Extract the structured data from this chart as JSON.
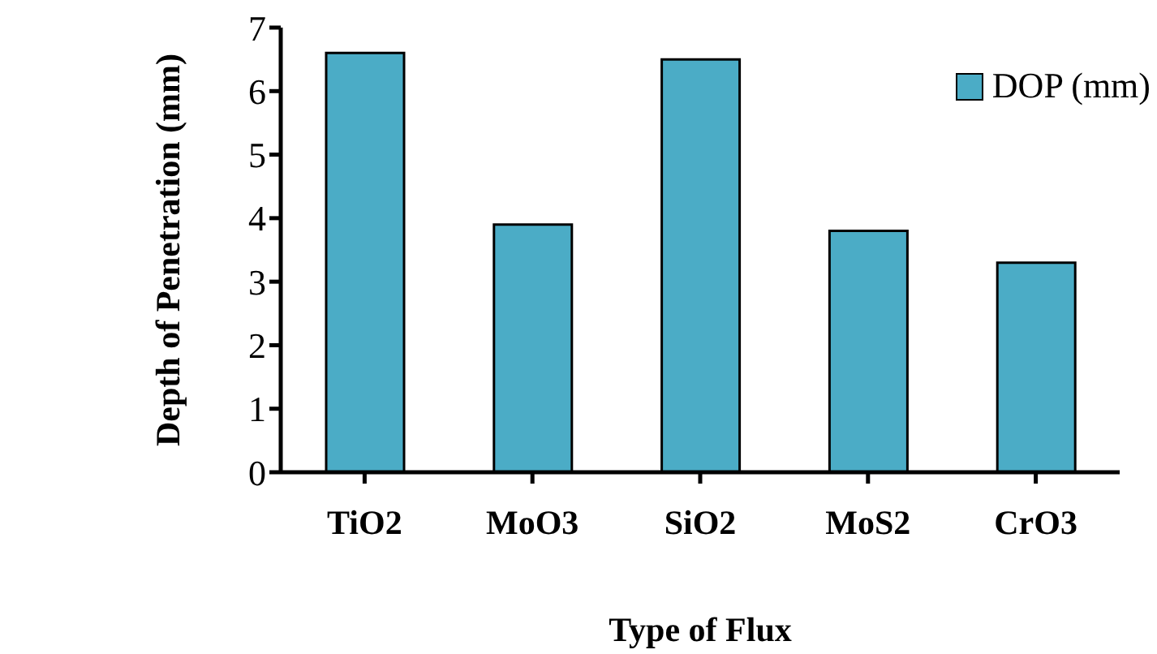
{
  "chart_data": {
    "type": "bar",
    "xlabel": "Type of Flux",
    "ylabel": "Depth of Penetration  (mm)",
    "categories": [
      "TiO2",
      "MoO3",
      "SiO2",
      "MoS2",
      "CrO3"
    ],
    "series": [
      {
        "name": "DOP (mm)",
        "color": "#4bacc6",
        "values": [
          6.6,
          3.9,
          6.5,
          3.8,
          3.3
        ]
      }
    ],
    "ylim": [
      0,
      7
    ],
    "yticks": [
      0,
      1,
      2,
      3,
      4,
      5,
      6,
      7
    ],
    "grid": false,
    "legend": "top right"
  }
}
